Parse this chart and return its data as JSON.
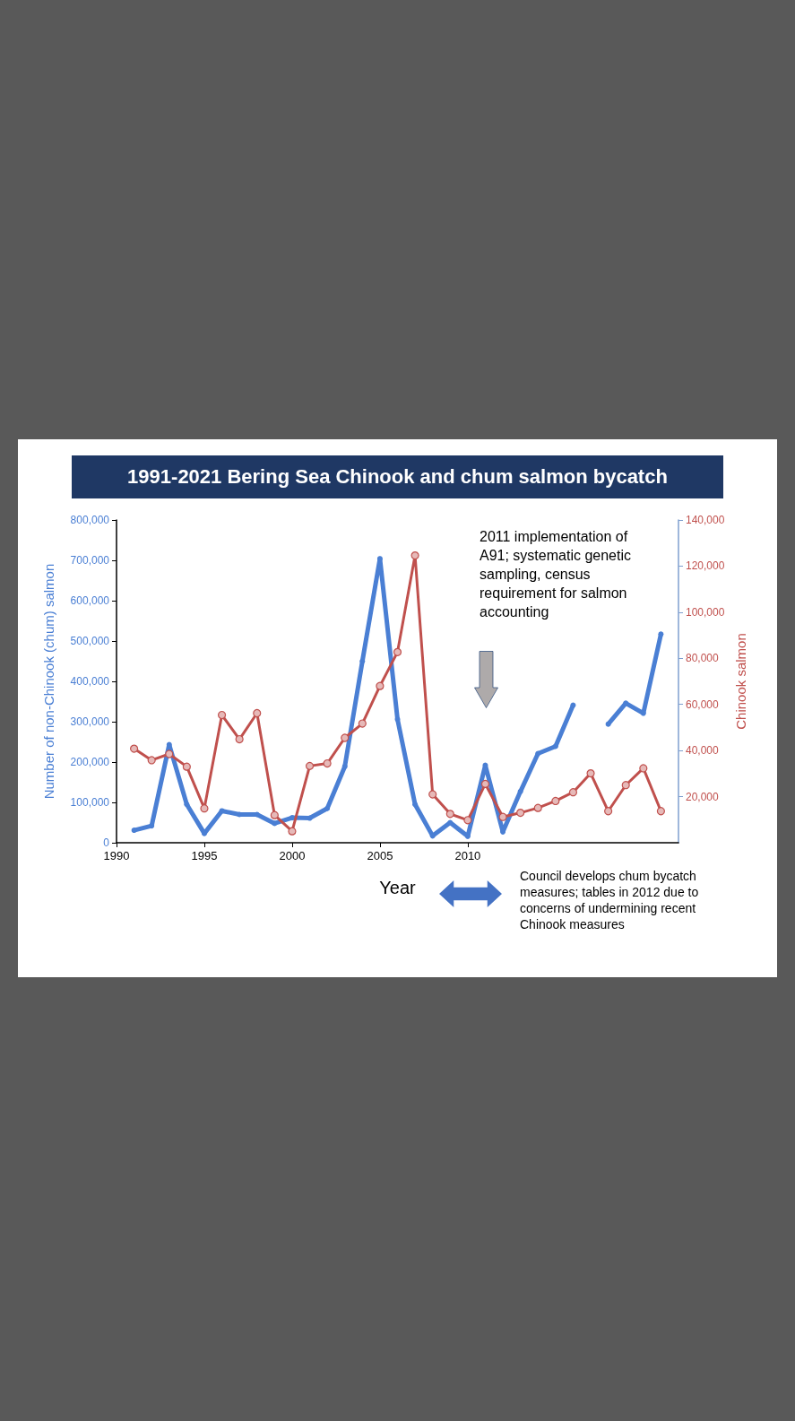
{
  "chart_data": {
    "type": "line",
    "title": "1991-2021 Bering Sea Chinook and chum salmon bycatch",
    "xlabel": "Year",
    "ylabel": "Number of non-Chinook (chum) salmon",
    "y2label": "Chinook salmon",
    "annotations": [
      "2011 implementation of A91; systematic genetic sampling, census requirement for salmon accounting",
      "Council develops chum bycatch measures; tables in 2012 due to concerns of undermining recent Chinook measures"
    ],
    "x": [
      1991,
      1992,
      1993,
      1994,
      1995,
      1996,
      1997,
      1998,
      1999,
      2000,
      2001,
      2002,
      2003,
      2004,
      2005,
      2006,
      2007,
      2008,
      2009,
      2010,
      2011,
      2012,
      2013,
      2014,
      2015,
      2016,
      2017,
      2018,
      2019,
      2020,
      2021
    ],
    "xlim": [
      1990,
      2022
    ],
    "xticks": [
      1990,
      1995,
      2000,
      2005,
      2010
    ],
    "ylim": [
      0,
      800000
    ],
    "yticks": [
      0,
      {
        "value": 100000,
        "label": "100,000"
      },
      {
        "value": 200000,
        "label": "200,000"
      },
      {
        "value": 300000,
        "label": "300,000"
      },
      {
        "value": 400000,
        "label": "400,000"
      },
      {
        "value": 500000,
        "label": "500,000"
      },
      {
        "value": 600000,
        "label": "600,000"
      },
      {
        "value": 700000,
        "label": "700,000"
      },
      {
        "value": 800000,
        "label": "800,000"
      }
    ],
    "y2lim": [
      0,
      140000
    ],
    "y2ticks": [
      {
        "value": 20000,
        "label": "20,000"
      },
      {
        "value": 40000,
        "label": "40,000"
      },
      {
        "value": 60000,
        "label": "60,000"
      },
      {
        "value": 80000,
        "label": "80,000"
      },
      {
        "value": 100000,
        "label": "100,000"
      },
      {
        "value": 120000,
        "label": "120,000"
      },
      {
        "value": 140000,
        "label": "140,000"
      }
    ],
    "marker": "circle",
    "line_style": "solid",
    "series": [
      {
        "color": "#4a7fd4",
        "values": [
          31000,
          42000,
          243000,
          95000,
          23000,
          79000,
          70000,
          70000,
          48000,
          62000,
          61000,
          85000,
          189000,
          450000,
          704000,
          306000,
          95000,
          17000,
          50000,
          16000,
          192000,
          27000,
          127000,
          221000,
          239000,
          341000,
          null,
          294000,
          346000,
          321000,
          517000
        ]
      },
      {
        "color": "#c0504d",
        "axis": "y2",
        "values": [
          40800,
          35800,
          38500,
          33000,
          14900,
          55400,
          44900,
          56200,
          12000,
          5000,
          33300,
          34400,
          45500,
          51700,
          68000,
          82700,
          124600,
          21000,
          12500,
          9800,
          25500,
          11200,
          13000,
          15100,
          18100,
          21900,
          30100,
          13700,
          25000,
          32300,
          13700
        ]
      }
    ]
  }
}
